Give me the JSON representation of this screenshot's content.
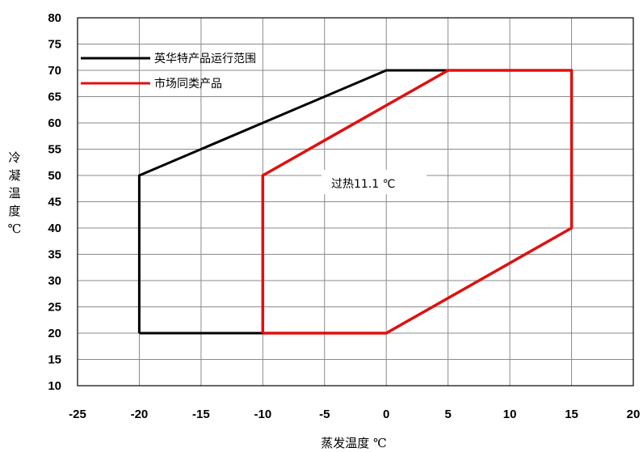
{
  "chart_data": {
    "type": "line",
    "xlabel": "蒸发温度 ℃",
    "ylabel": "冷凝温度℃",
    "xlim": [
      -25,
      20
    ],
    "ylim": [
      10,
      80
    ],
    "x_ticks": [
      -25,
      -20,
      -15,
      -10,
      -5,
      0,
      5,
      10,
      15,
      20
    ],
    "y_ticks": [
      10,
      15,
      20,
      25,
      30,
      35,
      40,
      45,
      50,
      55,
      60,
      65,
      70,
      75,
      80
    ],
    "grid": true,
    "legend_position": "top-left",
    "annotation": "过热11.1 ℃",
    "series": [
      {
        "name": "英华特产品运行范围",
        "color": "#000000",
        "points": [
          [
            -20,
            20
          ],
          [
            -20,
            50
          ],
          [
            0,
            70
          ],
          [
            15,
            70
          ],
          [
            15,
            40
          ],
          [
            0,
            20
          ],
          [
            -20,
            20
          ]
        ]
      },
      {
        "name": "市场同类产品",
        "color": "#e01010",
        "points": [
          [
            -10,
            20
          ],
          [
            -10,
            50
          ],
          [
            5,
            70
          ],
          [
            15,
            70
          ],
          [
            15,
            40
          ],
          [
            0,
            20
          ],
          [
            -10,
            20
          ]
        ]
      }
    ]
  }
}
